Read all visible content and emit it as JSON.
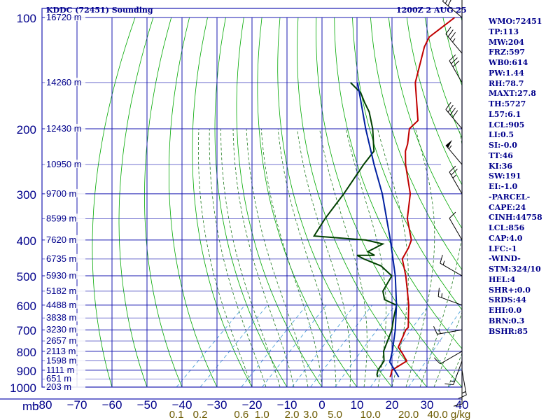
{
  "header": {
    "station": "KDDC (72451) Sounding",
    "time": "1200Z  2 AUG 25"
  },
  "indices": [
    "WMO:72451",
    "TP:113",
    "MW:204",
    "FRZ:597",
    "WB0:614",
    "PW:1.44",
    "RH:78.7",
    "MAXT:27.8",
    "TH:5727",
    "L57:6.1",
    "LCL:905",
    "LI:0.5",
    "SI:-0.0",
    "TT:46",
    "KI:36",
    "SW:191",
    "EI:-1.0",
    "-PARCEL-",
    "CAPE:24",
    "CINH:44758",
    "LCL:856",
    "CAP:4.0",
    "LFC:-1",
    "-WIND-",
    "STM:324/10",
    "HEL:4",
    "SHR+:0.0",
    "SRDS:44",
    "EHI:0.0",
    "BRN:0.3",
    "BSHR:85"
  ],
  "colors": {
    "grid": "#1a1ab0",
    "dry_adiabat": "#00a800",
    "moist_adiabat": "#1e7a1e",
    "mixing_ratio": "#4aa0d8",
    "temperature": "#c00000",
    "dewpoint": "#004000",
    "parcel": "#0020a0",
    "axis_text": "#00008b",
    "mixing_text": "#6b5a00",
    "wind": "#000000"
  },
  "chart_data": {
    "type": "line",
    "title": "KDDC (72451) Sounding",
    "xlabel": "",
    "ylabel": "mb",
    "x_ticks": [
      -80,
      -70,
      -60,
      -50,
      -40,
      -30,
      -20,
      -10,
      0,
      10,
      20,
      30,
      40
    ],
    "xlim": [
      -80,
      40
    ],
    "ylim": [
      1000,
      100
    ],
    "y_scale": "log",
    "pressure_ticks": [
      100,
      200,
      300,
      400,
      500,
      600,
      700,
      800,
      900,
      1000
    ],
    "pressure_tick_labels": [
      "100",
      "200",
      "300",
      "400",
      "500",
      "600",
      "700",
      "800",
      "900",
      "1000"
    ],
    "height_labels": [
      {
        "p": 100,
        "label": "16720 m"
      },
      {
        "p": 150,
        "label": "14260 m"
      },
      {
        "p": 200,
        "label": "12430 m"
      },
      {
        "p": 250,
        "label": "10950 m"
      },
      {
        "p": 300,
        "label": "9700 m"
      },
      {
        "p": 350,
        "label": "8599 m"
      },
      {
        "p": 400,
        "label": "7620 m"
      },
      {
        "p": 450,
        "label": "6735 m"
      },
      {
        "p": 500,
        "label": "5930 m"
      },
      {
        "p": 550,
        "label": "5182 m"
      },
      {
        "p": 600,
        "label": "4488 m"
      },
      {
        "p": 650,
        "label": "3838 m"
      },
      {
        "p": 700,
        "label": "3230 m"
      },
      {
        "p": 750,
        "label": "2657 m"
      },
      {
        "p": 800,
        "label": "2113 m"
      },
      {
        "p": 850,
        "label": "1598 m"
      },
      {
        "p": 900,
        "label": "1111 m"
      },
      {
        "p": 950,
        "label": "651 m"
      },
      {
        "p": 1000,
        "label": "203 m"
      }
    ],
    "mixing_ratio_labels": [
      "0.1",
      "0.2",
      "0.6",
      "1.0",
      "2.0",
      "3.0",
      "5.0",
      "10.0",
      "20.0",
      "40.0 g/kg"
    ],
    "mixing_ratio_values": [
      0.1,
      0.2,
      0.6,
      1.0,
      2.0,
      3.0,
      5.0,
      10.0,
      20.0,
      40.0
    ],
    "series": [
      {
        "key": "temperature",
        "points": [
          {
            "p": 940,
            "t": 16.5
          },
          {
            "p": 925,
            "t": 16.0
          },
          {
            "p": 900,
            "t": 15.0
          },
          {
            "p": 850,
            "t": 16.5
          },
          {
            "p": 800,
            "t": 12.0
          },
          {
            "p": 780,
            "t": 10.0
          },
          {
            "p": 700,
            "t": 7.0
          },
          {
            "p": 690,
            "t": 7.0
          },
          {
            "p": 600,
            "t": 0.5
          },
          {
            "p": 550,
            "t": -4.0
          },
          {
            "p": 500,
            "t": -9.0
          },
          {
            "p": 450,
            "t": -15.0
          },
          {
            "p": 420,
            "t": -16.5
          },
          {
            "p": 400,
            "t": -18.0
          },
          {
            "p": 350,
            "t": -25.5
          },
          {
            "p": 300,
            "t": -32.0
          },
          {
            "p": 250,
            "t": -42.0
          },
          {
            "p": 230,
            "t": -46.0
          },
          {
            "p": 220,
            "t": -47.5
          },
          {
            "p": 200,
            "t": -51.5
          },
          {
            "p": 190,
            "t": -51.5
          },
          {
            "p": 150,
            "t": -63.5
          },
          {
            "p": 120,
            "t": -71.5
          },
          {
            "p": 113,
            "t": -73.0
          },
          {
            "p": 100,
            "t": -71.5
          }
        ]
      },
      {
        "key": "dewpoint",
        "points": [
          {
            "p": 940,
            "t": 13.0
          },
          {
            "p": 925,
            "t": 12.0
          },
          {
            "p": 900,
            "t": 11.0
          },
          {
            "p": 850,
            "t": 10.0
          },
          {
            "p": 800,
            "t": 7.0
          },
          {
            "p": 700,
            "t": 3.0
          },
          {
            "p": 650,
            "t": 0.0
          },
          {
            "p": 600,
            "t": -3.0
          },
          {
            "p": 580,
            "t": -8.0
          },
          {
            "p": 550,
            "t": -11.0
          },
          {
            "p": 500,
            "t": -13.0
          },
          {
            "p": 470,
            "t": -19.0
          },
          {
            "p": 450,
            "t": -26.0
          },
          {
            "p": 440,
            "t": -29.0
          },
          {
            "p": 440,
            "t": -24.0
          },
          {
            "p": 430,
            "t": -27.0
          },
          {
            "p": 410,
            "t": -25.0
          },
          {
            "p": 400,
            "t": -31.0
          },
          {
            "p": 390,
            "t": -47.0
          },
          {
            "p": 350,
            "t": -49.0
          },
          {
            "p": 300,
            "t": -51.0
          },
          {
            "p": 250,
            "t": -54.0
          },
          {
            "p": 230,
            "t": -55.0
          },
          {
            "p": 200,
            "t": -62.0
          },
          {
            "p": 180,
            "t": -68.0
          },
          {
            "p": 170,
            "t": -72.0
          },
          {
            "p": 160,
            "t": -76.0
          },
          {
            "p": 150,
            "t": -82.0
          }
        ]
      },
      {
        "key": "parcel",
        "points": [
          {
            "p": 940,
            "t": 19.0
          },
          {
            "p": 856,
            "t": 12.0
          },
          {
            "p": 800,
            "t": 9.5
          },
          {
            "p": 700,
            "t": 4.0
          },
          {
            "p": 600,
            "t": -3.0
          },
          {
            "p": 500,
            "t": -12.0
          },
          {
            "p": 400,
            "t": -24.0
          },
          {
            "p": 300,
            "t": -40.0
          },
          {
            "p": 250,
            "t": -51.0
          },
          {
            "p": 200,
            "t": -64.0
          },
          {
            "p": 150,
            "t": -80.0
          }
        ]
      }
    ],
    "winds": [
      {
        "p": 950,
        "dir": 180,
        "spd": 10
      },
      {
        "p": 900,
        "dir": 170,
        "spd": 15
      },
      {
        "p": 850,
        "dir": 200,
        "spd": 15
      },
      {
        "p": 800,
        "dir": 240,
        "spd": 10
      },
      {
        "p": 700,
        "dir": 260,
        "spd": 15
      },
      {
        "p": 600,
        "dir": 290,
        "spd": 15
      },
      {
        "p": 500,
        "dir": 300,
        "spd": 15
      },
      {
        "p": 400,
        "dir": 330,
        "spd": 10
      },
      {
        "p": 300,
        "dir": 330,
        "spd": 25
      },
      {
        "p": 250,
        "dir": 320,
        "spd": 55
      },
      {
        "p": 200,
        "dir": 320,
        "spd": 40
      },
      {
        "p": 150,
        "dir": 330,
        "spd": 30
      },
      {
        "p": 125,
        "dir": 320,
        "spd": 35
      },
      {
        "p": 100,
        "dir": 310,
        "spd": 30
      }
    ]
  }
}
